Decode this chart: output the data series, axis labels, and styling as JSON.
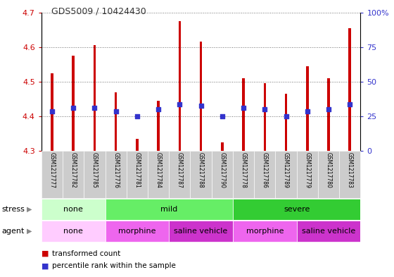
{
  "title": "GDS5009 / 10424430",
  "samples": [
    "GSM1217777",
    "GSM1217782",
    "GSM1217785",
    "GSM1217776",
    "GSM1217781",
    "GSM1217784",
    "GSM1217787",
    "GSM1217788",
    "GSM1217790",
    "GSM1217778",
    "GSM1217786",
    "GSM1217789",
    "GSM1217779",
    "GSM1217780",
    "GSM1217783"
  ],
  "bar_top": [
    4.525,
    4.575,
    4.605,
    4.47,
    4.335,
    4.445,
    4.675,
    4.615,
    4.325,
    4.51,
    4.495,
    4.465,
    4.545,
    4.51,
    4.655
  ],
  "bar_bottom": 4.3,
  "blue_dot_y": [
    4.415,
    4.425,
    4.425,
    4.415,
    4.4,
    4.42,
    4.435,
    4.43,
    4.4,
    4.425,
    4.42,
    4.4,
    4.415,
    4.42,
    4.435
  ],
  "ylim": [
    4.3,
    4.7
  ],
  "yticks_left": [
    4.3,
    4.4,
    4.5,
    4.6,
    4.7
  ],
  "yticks_right_labels": [
    "0",
    "25",
    "50",
    "75",
    "100%"
  ],
  "yticks_right_vals": [
    0,
    25,
    50,
    75,
    100
  ],
  "bar_color": "#cc0000",
  "blue_color": "#3333cc",
  "stress_groups": [
    {
      "label": "none",
      "start": 0,
      "end": 3,
      "color": "#ccffcc"
    },
    {
      "label": "mild",
      "start": 3,
      "end": 9,
      "color": "#66ee66"
    },
    {
      "label": "severe",
      "start": 9,
      "end": 15,
      "color": "#33cc33"
    }
  ],
  "agent_groups": [
    {
      "label": "none",
      "start": 0,
      "end": 3,
      "color": "#ffccff"
    },
    {
      "label": "morphine",
      "start": 3,
      "end": 6,
      "color": "#ee66ee"
    },
    {
      "label": "saline vehicle",
      "start": 6,
      "end": 9,
      "color": "#cc33cc"
    },
    {
      "label": "morphine",
      "start": 9,
      "end": 12,
      "color": "#ee66ee"
    },
    {
      "label": "saline vehicle",
      "start": 12,
      "end": 15,
      "color": "#cc33cc"
    }
  ],
  "bar_width": 0.12,
  "dot_size": 18,
  "title_color": "#333333",
  "left_axis_color": "#cc0000",
  "right_axis_color": "#3333cc",
  "grid_color": "#333333",
  "tick_label_area_color": "#cccccc",
  "plot_bg_color": "#ffffff",
  "fig_bg_color": "#ffffff"
}
